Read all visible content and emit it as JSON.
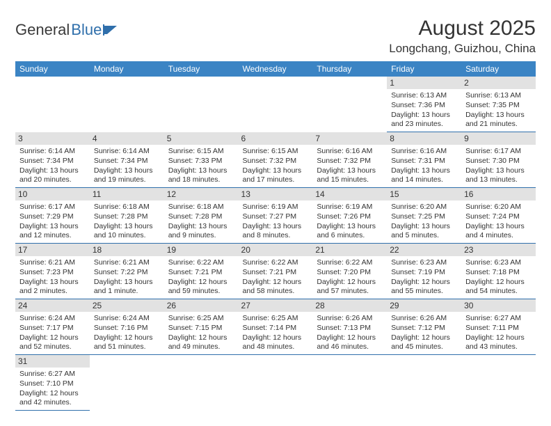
{
  "logo": {
    "text_left": "General",
    "text_right": "Blue"
  },
  "header": {
    "month_title": "August 2025",
    "location": "Longchang, Guizhou, China"
  },
  "calendar": {
    "header_bg": "#3b84c4",
    "header_fg": "#ffffff",
    "daynum_bg": "#e2e2e2",
    "cell_border": "#2f6fab",
    "columns": [
      "Sunday",
      "Monday",
      "Tuesday",
      "Wednesday",
      "Thursday",
      "Friday",
      "Saturday"
    ],
    "weeks": [
      [
        {
          "day": "",
          "sunrise": "",
          "sunset": "",
          "daylight": ""
        },
        {
          "day": "",
          "sunrise": "",
          "sunset": "",
          "daylight": ""
        },
        {
          "day": "",
          "sunrise": "",
          "sunset": "",
          "daylight": ""
        },
        {
          "day": "",
          "sunrise": "",
          "sunset": "",
          "daylight": ""
        },
        {
          "day": "",
          "sunrise": "",
          "sunset": "",
          "daylight": ""
        },
        {
          "day": "1",
          "sunrise": "Sunrise: 6:13 AM",
          "sunset": "Sunset: 7:36 PM",
          "daylight": "Daylight: 13 hours and 23 minutes."
        },
        {
          "day": "2",
          "sunrise": "Sunrise: 6:13 AM",
          "sunset": "Sunset: 7:35 PM",
          "daylight": "Daylight: 13 hours and 21 minutes."
        }
      ],
      [
        {
          "day": "3",
          "sunrise": "Sunrise: 6:14 AM",
          "sunset": "Sunset: 7:34 PM",
          "daylight": "Daylight: 13 hours and 20 minutes."
        },
        {
          "day": "4",
          "sunrise": "Sunrise: 6:14 AM",
          "sunset": "Sunset: 7:34 PM",
          "daylight": "Daylight: 13 hours and 19 minutes."
        },
        {
          "day": "5",
          "sunrise": "Sunrise: 6:15 AM",
          "sunset": "Sunset: 7:33 PM",
          "daylight": "Daylight: 13 hours and 18 minutes."
        },
        {
          "day": "6",
          "sunrise": "Sunrise: 6:15 AM",
          "sunset": "Sunset: 7:32 PM",
          "daylight": "Daylight: 13 hours and 17 minutes."
        },
        {
          "day": "7",
          "sunrise": "Sunrise: 6:16 AM",
          "sunset": "Sunset: 7:32 PM",
          "daylight": "Daylight: 13 hours and 15 minutes."
        },
        {
          "day": "8",
          "sunrise": "Sunrise: 6:16 AM",
          "sunset": "Sunset: 7:31 PM",
          "daylight": "Daylight: 13 hours and 14 minutes."
        },
        {
          "day": "9",
          "sunrise": "Sunrise: 6:17 AM",
          "sunset": "Sunset: 7:30 PM",
          "daylight": "Daylight: 13 hours and 13 minutes."
        }
      ],
      [
        {
          "day": "10",
          "sunrise": "Sunrise: 6:17 AM",
          "sunset": "Sunset: 7:29 PM",
          "daylight": "Daylight: 13 hours and 12 minutes."
        },
        {
          "day": "11",
          "sunrise": "Sunrise: 6:18 AM",
          "sunset": "Sunset: 7:28 PM",
          "daylight": "Daylight: 13 hours and 10 minutes."
        },
        {
          "day": "12",
          "sunrise": "Sunrise: 6:18 AM",
          "sunset": "Sunset: 7:28 PM",
          "daylight": "Daylight: 13 hours and 9 minutes."
        },
        {
          "day": "13",
          "sunrise": "Sunrise: 6:19 AM",
          "sunset": "Sunset: 7:27 PM",
          "daylight": "Daylight: 13 hours and 8 minutes."
        },
        {
          "day": "14",
          "sunrise": "Sunrise: 6:19 AM",
          "sunset": "Sunset: 7:26 PM",
          "daylight": "Daylight: 13 hours and 6 minutes."
        },
        {
          "day": "15",
          "sunrise": "Sunrise: 6:20 AM",
          "sunset": "Sunset: 7:25 PM",
          "daylight": "Daylight: 13 hours and 5 minutes."
        },
        {
          "day": "16",
          "sunrise": "Sunrise: 6:20 AM",
          "sunset": "Sunset: 7:24 PM",
          "daylight": "Daylight: 13 hours and 4 minutes."
        }
      ],
      [
        {
          "day": "17",
          "sunrise": "Sunrise: 6:21 AM",
          "sunset": "Sunset: 7:23 PM",
          "daylight": "Daylight: 13 hours and 2 minutes."
        },
        {
          "day": "18",
          "sunrise": "Sunrise: 6:21 AM",
          "sunset": "Sunset: 7:22 PM",
          "daylight": "Daylight: 13 hours and 1 minute."
        },
        {
          "day": "19",
          "sunrise": "Sunrise: 6:22 AM",
          "sunset": "Sunset: 7:21 PM",
          "daylight": "Daylight: 12 hours and 59 minutes."
        },
        {
          "day": "20",
          "sunrise": "Sunrise: 6:22 AM",
          "sunset": "Sunset: 7:21 PM",
          "daylight": "Daylight: 12 hours and 58 minutes."
        },
        {
          "day": "21",
          "sunrise": "Sunrise: 6:22 AM",
          "sunset": "Sunset: 7:20 PM",
          "daylight": "Daylight: 12 hours and 57 minutes."
        },
        {
          "day": "22",
          "sunrise": "Sunrise: 6:23 AM",
          "sunset": "Sunset: 7:19 PM",
          "daylight": "Daylight: 12 hours and 55 minutes."
        },
        {
          "day": "23",
          "sunrise": "Sunrise: 6:23 AM",
          "sunset": "Sunset: 7:18 PM",
          "daylight": "Daylight: 12 hours and 54 minutes."
        }
      ],
      [
        {
          "day": "24",
          "sunrise": "Sunrise: 6:24 AM",
          "sunset": "Sunset: 7:17 PM",
          "daylight": "Daylight: 12 hours and 52 minutes."
        },
        {
          "day": "25",
          "sunrise": "Sunrise: 6:24 AM",
          "sunset": "Sunset: 7:16 PM",
          "daylight": "Daylight: 12 hours and 51 minutes."
        },
        {
          "day": "26",
          "sunrise": "Sunrise: 6:25 AM",
          "sunset": "Sunset: 7:15 PM",
          "daylight": "Daylight: 12 hours and 49 minutes."
        },
        {
          "day": "27",
          "sunrise": "Sunrise: 6:25 AM",
          "sunset": "Sunset: 7:14 PM",
          "daylight": "Daylight: 12 hours and 48 minutes."
        },
        {
          "day": "28",
          "sunrise": "Sunrise: 6:26 AM",
          "sunset": "Sunset: 7:13 PM",
          "daylight": "Daylight: 12 hours and 46 minutes."
        },
        {
          "day": "29",
          "sunrise": "Sunrise: 6:26 AM",
          "sunset": "Sunset: 7:12 PM",
          "daylight": "Daylight: 12 hours and 45 minutes."
        },
        {
          "day": "30",
          "sunrise": "Sunrise: 6:27 AM",
          "sunset": "Sunset: 7:11 PM",
          "daylight": "Daylight: 12 hours and 43 minutes."
        }
      ],
      [
        {
          "day": "31",
          "sunrise": "Sunrise: 6:27 AM",
          "sunset": "Sunset: 7:10 PM",
          "daylight": "Daylight: 12 hours and 42 minutes."
        },
        {
          "day": "",
          "sunrise": "",
          "sunset": "",
          "daylight": ""
        },
        {
          "day": "",
          "sunrise": "",
          "sunset": "",
          "daylight": ""
        },
        {
          "day": "",
          "sunrise": "",
          "sunset": "",
          "daylight": ""
        },
        {
          "day": "",
          "sunrise": "",
          "sunset": "",
          "daylight": ""
        },
        {
          "day": "",
          "sunrise": "",
          "sunset": "",
          "daylight": ""
        },
        {
          "day": "",
          "sunrise": "",
          "sunset": "",
          "daylight": ""
        }
      ]
    ]
  }
}
